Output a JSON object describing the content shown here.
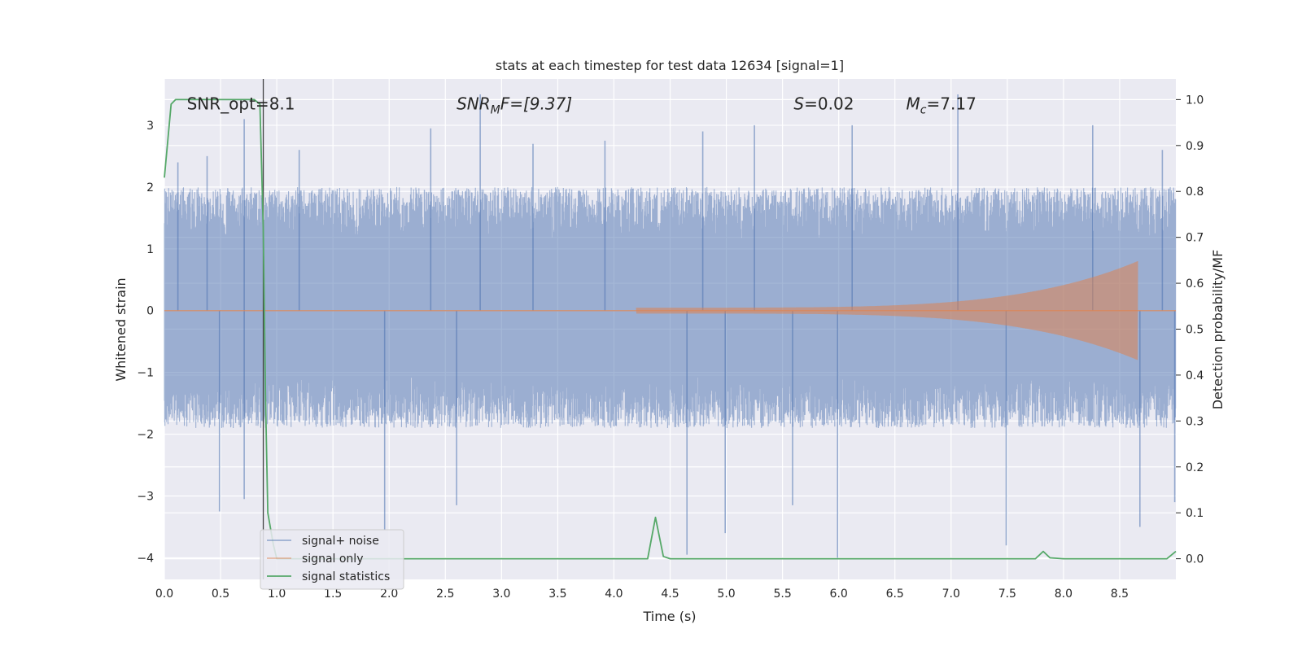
{
  "chart_data": {
    "type": "line",
    "title": "stats at each timestep for test data 12634 [signal=1]",
    "xlabel": "Time (s)",
    "ylabel_left": "Whitened strain",
    "ylabel_right": "Detection probability/MF",
    "xlim": [
      0.0,
      9.0
    ],
    "ylim_left": [
      -4.35,
      3.75
    ],
    "ylim_right": [
      -0.045,
      1.045
    ],
    "x_ticks": [
      0.0,
      0.5,
      1.0,
      1.5,
      2.0,
      2.5,
      3.0,
      3.5,
      4.0,
      4.5,
      5.0,
      5.5,
      6.0,
      6.5,
      7.0,
      7.5,
      8.0,
      8.5
    ],
    "x_tick_labels": [
      "0.0",
      "0.5",
      "1.0",
      "1.5",
      "2.0",
      "2.5",
      "3.0",
      "3.5",
      "4.0",
      "4.5",
      "5.0",
      "5.5",
      "6.0",
      "6.5",
      "7.0",
      "7.5",
      "8.0",
      "8.5"
    ],
    "y_left_ticks": [
      -4,
      -3,
      -2,
      -1,
      0,
      1,
      2,
      3
    ],
    "y_left_tick_labels": [
      "−4",
      "−3",
      "−2",
      "−1",
      "0",
      "1",
      "2",
      "3"
    ],
    "y_right_ticks": [
      0.0,
      0.1,
      0.2,
      0.3,
      0.4,
      0.5,
      0.6,
      0.7,
      0.8,
      0.9,
      1.0
    ],
    "y_right_tick_labels": [
      "0.0",
      "0.1",
      "0.2",
      "0.3",
      "0.4",
      "0.5",
      "0.6",
      "0.7",
      "0.8",
      "0.9",
      "1.0"
    ],
    "grid": true,
    "legend_position": "lower-left",
    "vline_x": 0.88,
    "series": [
      {
        "name": "signal+ noise",
        "axis": "left",
        "color": "#4c72b0",
        "style": "noise band",
        "typical_range": [
          -1.9,
          2.0
        ],
        "peaks_up": [
          [
            0.12,
            2.4
          ],
          [
            0.38,
            2.5
          ],
          [
            0.71,
            3.1
          ],
          [
            1.2,
            2.6
          ],
          [
            2.37,
            2.95
          ],
          [
            2.81,
            3.5
          ],
          [
            3.28,
            2.7
          ],
          [
            3.92,
            2.75
          ],
          [
            4.79,
            2.9
          ],
          [
            5.25,
            3.0
          ],
          [
            6.12,
            3.0
          ],
          [
            7.06,
            3.5
          ],
          [
            8.26,
            3.0
          ],
          [
            8.88,
            2.6
          ]
        ],
        "peaks_down": [
          [
            0.49,
            -3.25
          ],
          [
            0.71,
            -3.05
          ],
          [
            1.96,
            -3.55
          ],
          [
            2.6,
            -3.15
          ],
          [
            4.65,
            -3.95
          ],
          [
            4.99,
            -3.6
          ],
          [
            5.59,
            -3.15
          ],
          [
            5.99,
            -4.0
          ],
          [
            7.49,
            -3.8
          ],
          [
            8.68,
            -3.5
          ],
          [
            8.99,
            -3.1
          ]
        ]
      },
      {
        "name": "signal only",
        "axis": "left",
        "color": "#dd8452",
        "style": "chirp",
        "start_x": 4.2,
        "merger_x": 8.66,
        "peak_amplitude": 0.8
      },
      {
        "name": "signal statistics",
        "axis": "right",
        "color": "#55a868",
        "x": [
          0.0,
          0.06,
          0.1,
          0.2,
          0.4,
          0.6,
          0.8,
          0.85,
          0.88,
          0.9,
          0.92,
          0.97,
          1.0,
          1.5,
          2.0,
          3.0,
          4.0,
          4.3,
          4.37,
          4.44,
          4.5,
          5.0,
          6.0,
          7.0,
          7.75,
          7.82,
          7.88,
          8.0,
          8.5,
          8.92,
          9.0
        ],
        "y": [
          0.83,
          0.99,
          1.0,
          1.0,
          1.0,
          1.0,
          1.0,
          0.99,
          0.72,
          0.35,
          0.1,
          0.03,
          0.0,
          0.0,
          0.0,
          0.0,
          0.0,
          0.0,
          0.09,
          0.005,
          0.0,
          0.0,
          0.0,
          0.0,
          0.0,
          0.016,
          0.002,
          0.0,
          0.0,
          0.0,
          0.016
        ]
      }
    ],
    "annotations": [
      {
        "text": "SNR_opt=8.1",
        "x": 0.2,
        "y_frac": 0.97
      },
      {
        "text": "SNR",
        "sub": "M",
        "tail": "F=[9.37]",
        "x": 2.6,
        "y_frac": 0.97,
        "italic": true
      },
      {
        "text": "S",
        "tail": "=0.02",
        "x": 5.6,
        "y_frac": 0.97,
        "italic": true
      },
      {
        "text": "M",
        "sub": "c",
        "tail": "=7.17",
        "x": 6.6,
        "y_frac": 0.97,
        "italic": true
      }
    ]
  }
}
